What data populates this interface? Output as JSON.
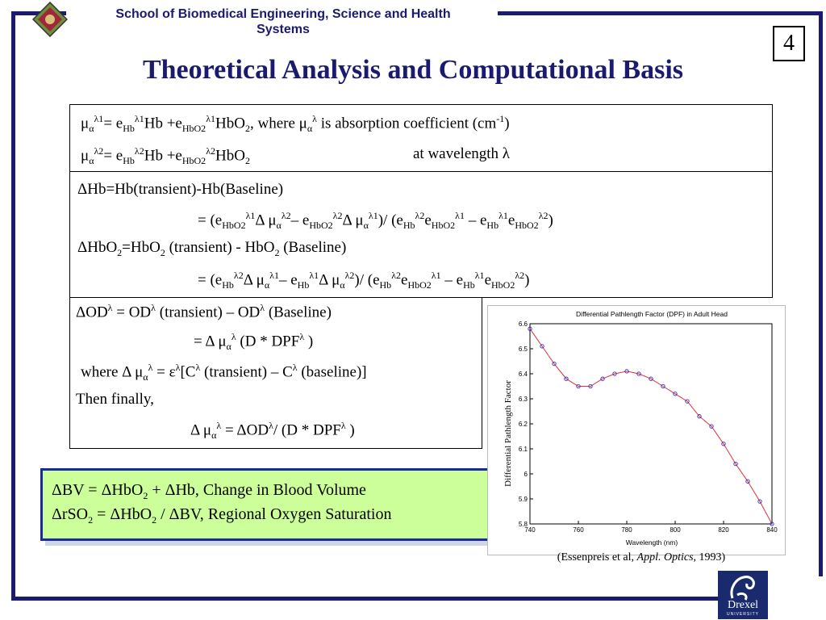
{
  "header": {
    "school_line1": "School of Biomedical Engineering, Science and Health",
    "school_line2": "Systems",
    "slide_number": "4",
    "title": "Theoretical Analysis and Computational Basis"
  },
  "equations": {
    "bullet_symbol": "",
    "mu_char": "μ",
    "alpha": "α",
    "lambda": "λ",
    "line1_where": ", where ",
    "line1_tail": " is absorption coefficient (cm",
    "line2_tail": "at wavelength ",
    "delta_hb_def": "ΔHb=Hb(transient)-Hb(Baseline)",
    "delta_hbo2_def_a": "ΔHbO",
    "delta_hbo2_def_b": "=HbO",
    "delta_hbo2_def_c": " (transient) - HbO",
    "delta_hbo2_def_d": " (Baseline)",
    "od_line1": "(transient) – OD",
    "od_line1_end": " (Baseline)",
    "od_line3_where": "where Δ ",
    "od_line3_mid": "[C",
    "od_line3_end": " (transient) – C",
    "od_line3_final": " (baseline)]",
    "then_finally": "Then finally,"
  },
  "summary": {
    "bv_line": "ΔBV = ΔHbO",
    "bv_tail": " + ΔHb, Change in Blood Volume",
    "rso2_line": "ΔrSO",
    "rso2_mid": " = ΔHbO",
    "rso2_tail": " / ΔBV, Regional Oxygen Saturation"
  },
  "caption": {
    "prefix": "(Essenpreis et al, ",
    "journal": "Appl. Optics",
    "suffix": ", 1993)"
  },
  "logo": {
    "text": "Drexel",
    "subtext": "UNIVERSITY"
  },
  "colors": {
    "navy": "#1a1a6e",
    "green_box": "#ccff99",
    "chart_line": "#e0303a",
    "chart_marker": "#3030c0"
  },
  "chart_data": {
    "type": "line",
    "title": "Differential Pathlength Factor (DPF) in Adult Head",
    "xlabel": "Wavelength (nm)",
    "ylabel": "Differential Pathlength Factor",
    "xlim": [
      740,
      840
    ],
    "ylim": [
      5.8,
      6.6
    ],
    "x_ticks": [
      740,
      760,
      780,
      800,
      820,
      840
    ],
    "y_ticks": [
      5.8,
      5.9,
      6.0,
      6.1,
      6.2,
      6.3,
      6.4,
      6.5,
      6.6
    ],
    "x": [
      740,
      745,
      750,
      755,
      760,
      765,
      770,
      775,
      780,
      785,
      790,
      795,
      800,
      805,
      810,
      815,
      820,
      825,
      830,
      835,
      840
    ],
    "values": [
      6.58,
      6.51,
      6.44,
      6.38,
      6.35,
      6.35,
      6.38,
      6.4,
      6.41,
      6.4,
      6.38,
      6.35,
      6.32,
      6.29,
      6.23,
      6.19,
      6.12,
      6.04,
      5.97,
      5.89,
      5.8
    ]
  }
}
